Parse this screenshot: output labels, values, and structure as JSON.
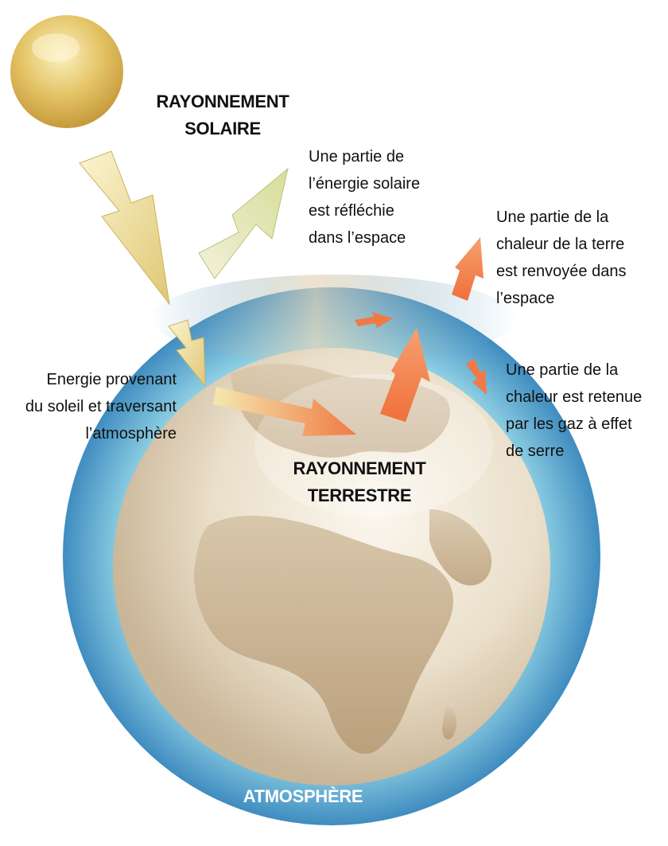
{
  "labels": {
    "solar_radiation": [
      "RAYONNEMENT",
      "SOLAIRE"
    ],
    "reflected": [
      "Une partie de",
      "l’énergie solaire",
      "est réfléchie",
      "dans l’espace"
    ],
    "earth_heat_escape": [
      "Une partie de la",
      "chaleur de la terre",
      "est renvoyée dans",
      "l’espace"
    ],
    "heat_retained": [
      "Une partie de la",
      "chaleur est retenue",
      "par les gaz à effet",
      "de serre"
    ],
    "energy_from_sun": [
      "Energie provenant",
      "du soleil et traversant",
      "l’atmosphère"
    ],
    "terrestrial_radiation": [
      "RAYONNEMENT",
      "TERRESTRE"
    ],
    "atmosphere": "ATMOSPHÈRE"
  },
  "colors": {
    "atmosphere_ring": "#4f9cc9",
    "atmosphere_ring_light": "#8fd0e3",
    "earth_land": "#d9c2a0",
    "earth_ocean": "#f1ead9",
    "sun": "#e4c466",
    "solar_arrow": "#f2e6a6",
    "heat_arrow": "#f07a45"
  }
}
